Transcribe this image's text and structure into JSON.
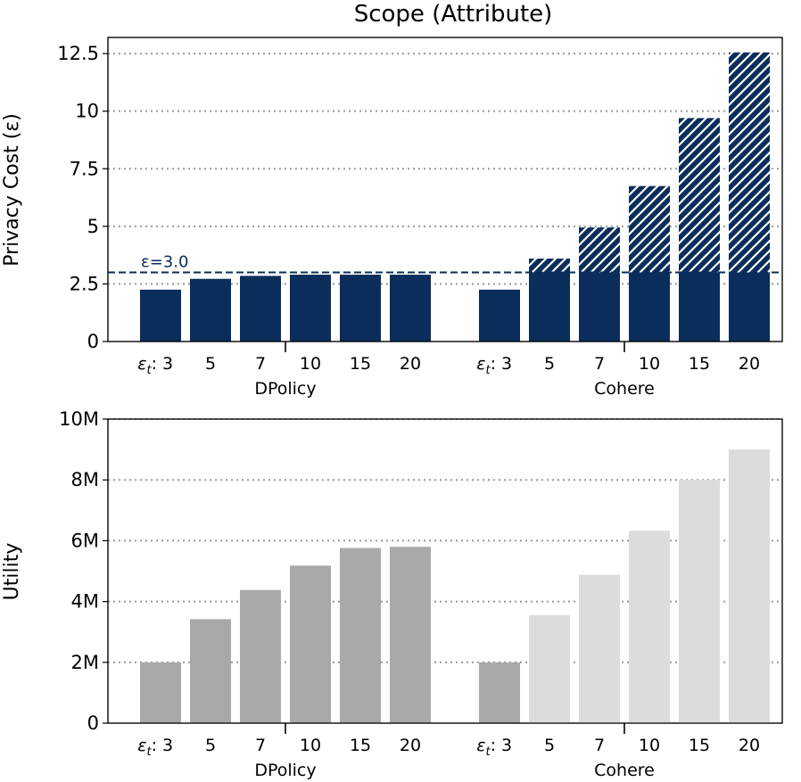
{
  "chart_data": [
    {
      "type": "bar",
      "title": "Scope (Attribute)",
      "ylabel": "Privacy Cost (ε)",
      "ylim": [
        0,
        13.2
      ],
      "yticks": [
        "0",
        "2.5",
        "5",
        "7.5",
        "10",
        "12.5"
      ],
      "ytick_values": [
        0,
        2.5,
        5,
        7.5,
        10,
        12.5
      ],
      "grid": "horizontal dotted",
      "groups": [
        {
          "name": "DPolicy",
          "prefix": "ε",
          "prefix_sub": "t",
          "categories": [
            "3",
            "5",
            "7",
            "10",
            "15",
            "20"
          ],
          "solid": [
            2.25,
            2.72,
            2.85,
            2.9,
            2.9,
            2.9
          ],
          "hatched": [
            0,
            0,
            0,
            0,
            0,
            0
          ]
        },
        {
          "name": "Cohere",
          "prefix": "ε",
          "prefix_sub": "t",
          "categories": [
            "3",
            "5",
            "7",
            "10",
            "15",
            "20"
          ],
          "solid": [
            2.25,
            3.0,
            3.0,
            3.0,
            3.0,
            3.0
          ],
          "hatched": [
            0,
            0.6,
            1.95,
            3.75,
            6.7,
            9.55
          ]
        }
      ],
      "threshold": {
        "value": 3.0,
        "label": "ε=3.0",
        "color": "#0b2d5b",
        "style": "dashed"
      },
      "colors": {
        "solid": "#0b2d5b",
        "hatch_line": "#ffffff",
        "grid": "#999999"
      }
    },
    {
      "type": "bar",
      "ylabel": "Utility",
      "ylim": [
        0,
        10000000
      ],
      "yticks": [
        "0",
        "2M",
        "4M",
        "6M",
        "8M",
        "10M"
      ],
      "ytick_values": [
        0,
        2000000,
        4000000,
        6000000,
        8000000,
        10000000
      ],
      "grid": "horizontal dotted",
      "groups": [
        {
          "name": "DPolicy",
          "prefix": "ε",
          "prefix_sub": "t",
          "categories": [
            "3",
            "5",
            "7",
            "10",
            "15",
            "20"
          ],
          "values": [
            2000000,
            3420000,
            4380000,
            5180000,
            5760000,
            5800000
          ],
          "colors": [
            "#a9a9a9",
            "#a9a9a9",
            "#a9a9a9",
            "#a9a9a9",
            "#a9a9a9",
            "#a9a9a9"
          ]
        },
        {
          "name": "Cohere",
          "prefix": "ε",
          "prefix_sub": "t",
          "categories": [
            "3",
            "5",
            "7",
            "10",
            "15",
            "20"
          ],
          "values": [
            2000000,
            3550000,
            4880000,
            6330000,
            8000000,
            9000000
          ],
          "colors": [
            "#a9a9a9",
            "#dcdcdc",
            "#dcdcdc",
            "#dcdcdc",
            "#dcdcdc",
            "#dcdcdc"
          ]
        }
      ],
      "colors": {
        "grid": "#999999"
      }
    }
  ]
}
